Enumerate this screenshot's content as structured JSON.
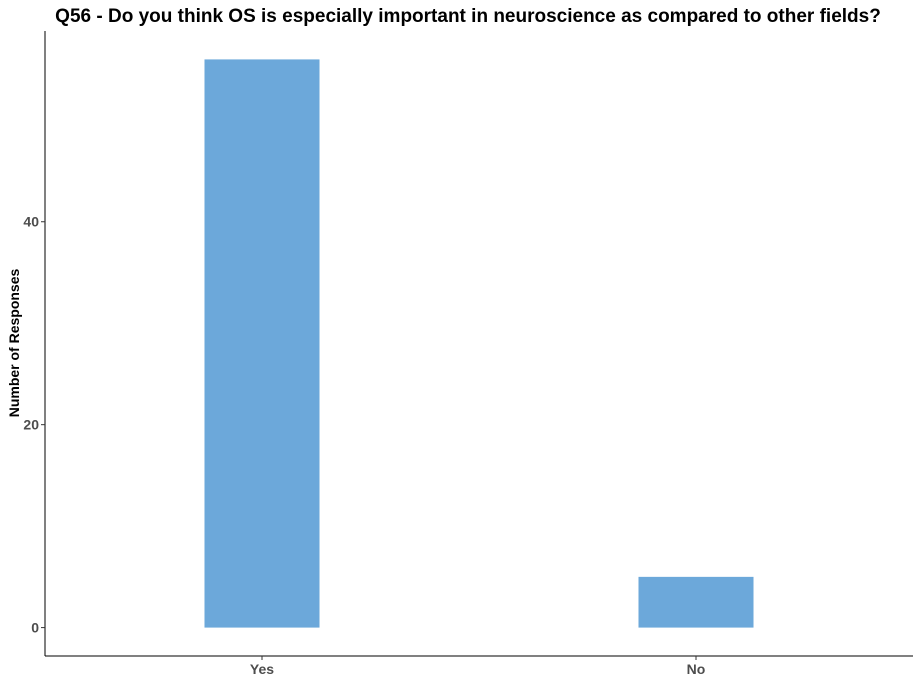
{
  "chart_data": {
    "type": "bar",
    "title": "Q56 - Do you think OS is especially important in neuroscience as compared to other fields?",
    "xlabel": "",
    "ylabel": "Number of Responses",
    "categories": [
      "Yes",
      "No"
    ],
    "values": [
      56,
      5
    ],
    "ylim": [
      -2.8,
      58.8
    ],
    "yticks": [
      0,
      20,
      40
    ],
    "bar_color": "#6ca8da",
    "grid": false,
    "legend": "none"
  }
}
